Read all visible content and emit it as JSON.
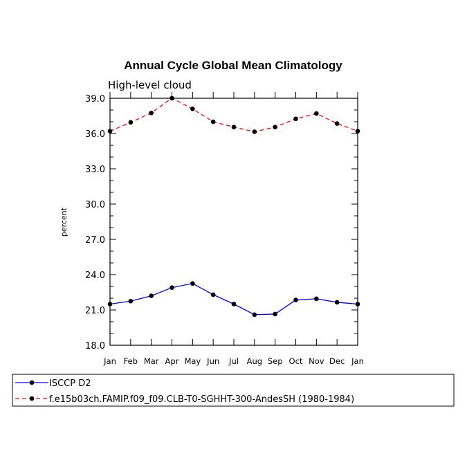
{
  "chart_data": {
    "type": "line",
    "title": "Annual Cycle Global Mean Climatology",
    "subtitle": "High-level cloud",
    "xlabel": "",
    "ylabel": "percent",
    "categories": [
      "Jan",
      "Feb",
      "Mar",
      "Apr",
      "May",
      "Jun",
      "Jul",
      "Aug",
      "Sep",
      "Oct",
      "Nov",
      "Dec",
      "Jan"
    ],
    "ylim": [
      18.0,
      39.0
    ],
    "yticks": [
      "18.0",
      "21.0",
      "24.0",
      "27.0",
      "30.0",
      "33.0",
      "36.0",
      "39.0"
    ],
    "ytick_values": [
      18,
      21,
      24,
      27,
      30,
      33,
      36,
      39
    ],
    "series": [
      {
        "name": "ISCCP D2",
        "color": "#0000ff",
        "dash": "solid",
        "values": [
          21.5,
          21.75,
          22.2,
          22.9,
          23.25,
          22.3,
          21.5,
          20.6,
          20.65,
          21.85,
          21.95,
          21.65,
          21.5
        ]
      },
      {
        "name": "f.e15b03ch.FAMIP.f09_f09.CLB-T0-SGHHT-300-AndesSH (1980-1984)",
        "color": "#ff0000",
        "dash": "dashed",
        "values": [
          36.2,
          36.95,
          37.75,
          39.0,
          38.1,
          37.0,
          36.55,
          36.15,
          36.55,
          37.25,
          37.7,
          36.85,
          36.2
        ]
      }
    ],
    "legend_position": "bottom"
  }
}
